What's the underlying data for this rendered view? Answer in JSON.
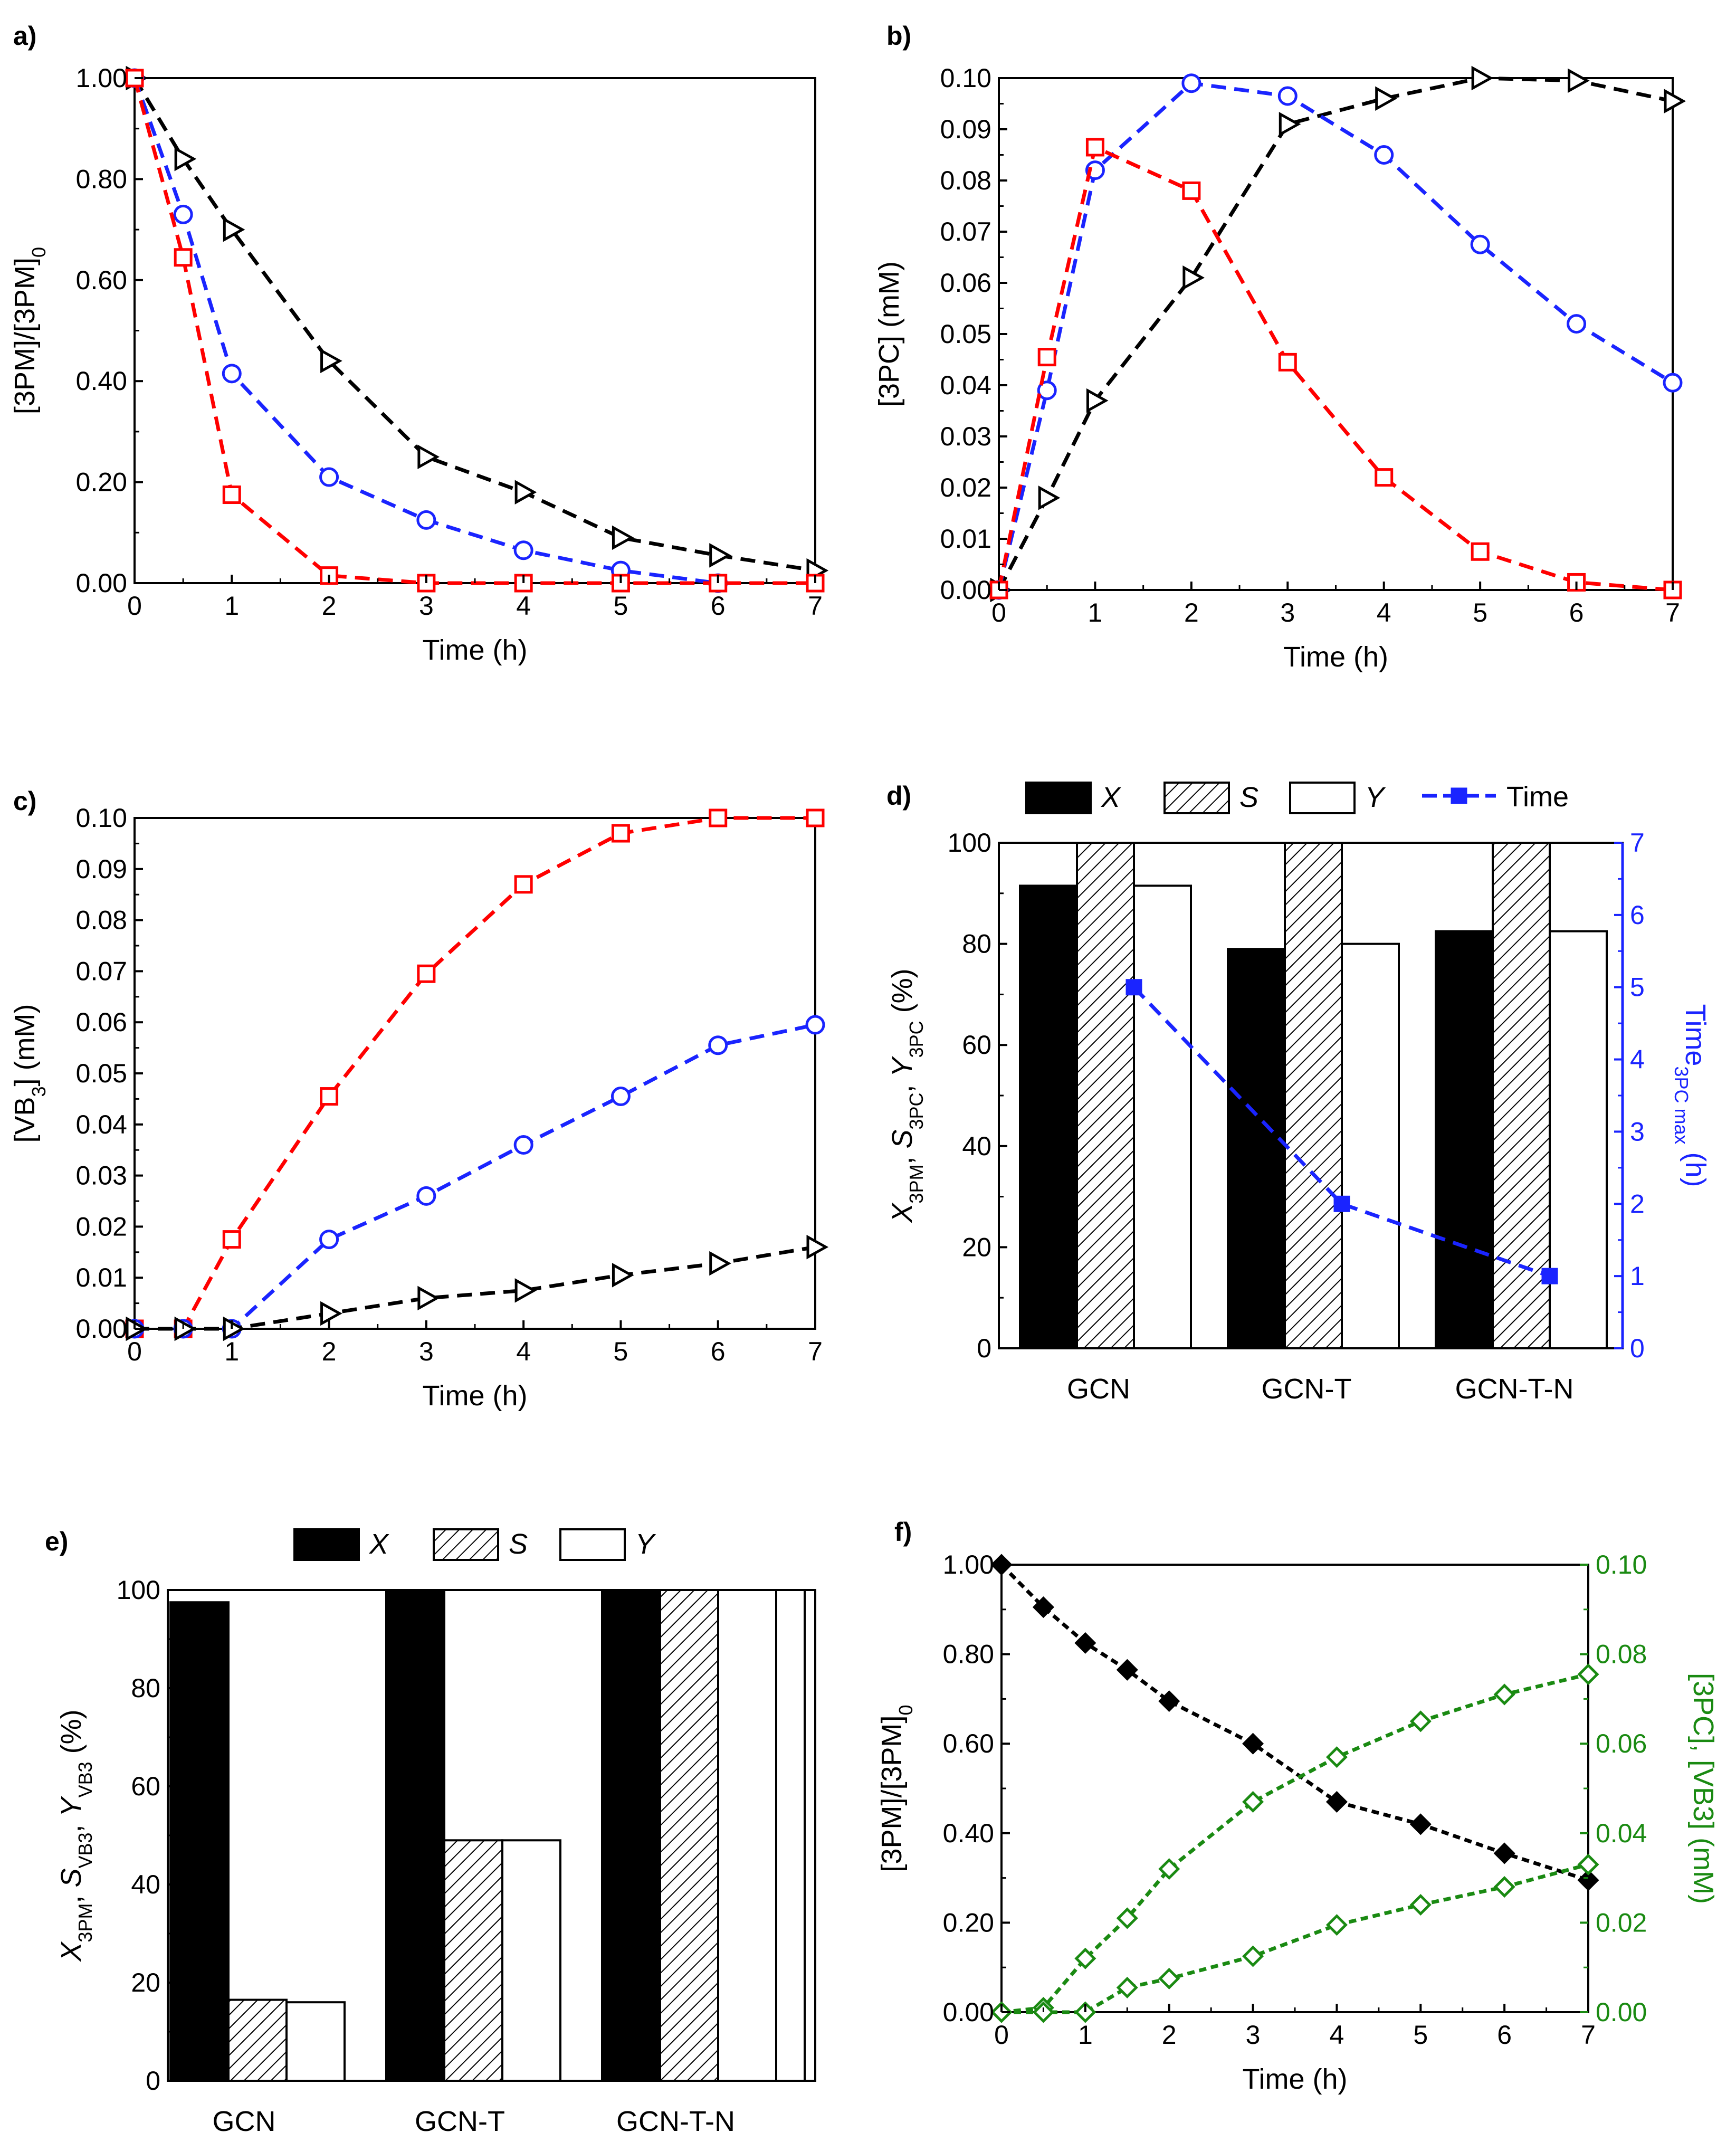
{
  "colors": {
    "red": "#ff0000",
    "blue": "#1a24ff",
    "black": "#000000",
    "green": "#1a8a12",
    "axis_blue": "#1a24ff",
    "axis_green": "#1a8a12"
  },
  "chart_data": [
    {
      "id": "a",
      "panel_label": "a)",
      "type": "line",
      "xlabel": "Time (h)",
      "ylabel": "[3PM]/[3PM]0",
      "xlim": [
        0,
        7
      ],
      "ylim": [
        0,
        1.0
      ],
      "x_ticks": [
        "0",
        "1",
        "2",
        "3",
        "4",
        "5",
        "6",
        "7"
      ],
      "y_ticks": [
        "0.00",
        "0.20",
        "0.40",
        "0.60",
        "0.80",
        "1.00"
      ],
      "series": [
        {
          "name": "triangle-black",
          "color": "black",
          "marker": "triangle",
          "x": [
            0,
            0.5,
            1,
            2,
            3,
            4,
            5,
            6,
            7
          ],
          "y": [
            1.0,
            0.84,
            0.7,
            0.44,
            0.25,
            0.18,
            0.09,
            0.055,
            0.025
          ]
        },
        {
          "name": "circle-blue",
          "color": "blue",
          "marker": "circle",
          "x": [
            0,
            0.5,
            1,
            2,
            3,
            4,
            5,
            6
          ],
          "y": [
            1.0,
            0.73,
            0.415,
            0.21,
            0.125,
            0.065,
            0.025,
            0.0
          ]
        },
        {
          "name": "square-red",
          "color": "red",
          "marker": "square",
          "x": [
            0,
            0.5,
            1,
            2,
            3,
            4,
            5,
            6,
            7
          ],
          "y": [
            1.0,
            0.645,
            0.175,
            0.015,
            0.0,
            0.0,
            0.0,
            0.0,
            0.0
          ]
        }
      ]
    },
    {
      "id": "b",
      "panel_label": "b)",
      "type": "line",
      "xlabel": "Time (h)",
      "ylabel": "[3PC] (mM)",
      "xlim": [
        0,
        7
      ],
      "ylim": [
        0,
        0.1
      ],
      "x_ticks": [
        "0",
        "1",
        "2",
        "3",
        "4",
        "5",
        "6",
        "7"
      ],
      "y_ticks": [
        "0.00",
        "0.01",
        "0.02",
        "0.03",
        "0.04",
        "0.05",
        "0.06",
        "0.07",
        "0.08",
        "0.09",
        "0.10"
      ],
      "series": [
        {
          "name": "triangle-black",
          "color": "black",
          "marker": "triangle",
          "x": [
            0,
            0.5,
            1,
            2,
            3,
            4,
            5,
            6,
            7
          ],
          "y": [
            0.0,
            0.018,
            0.037,
            0.061,
            0.091,
            0.096,
            0.1,
            0.0995,
            0.0955
          ]
        },
        {
          "name": "circle-blue",
          "color": "blue",
          "marker": "circle",
          "x": [
            0,
            0.5,
            1,
            2,
            3,
            4,
            5,
            6,
            7
          ],
          "y": [
            0.0,
            0.039,
            0.082,
            0.099,
            0.0965,
            0.085,
            0.0675,
            0.052,
            0.0405
          ]
        },
        {
          "name": "square-red",
          "color": "red",
          "marker": "square",
          "x": [
            0,
            0.5,
            1,
            2,
            3,
            4,
            5,
            6,
            7
          ],
          "y": [
            0.0,
            0.0455,
            0.0865,
            0.078,
            0.0445,
            0.022,
            0.0075,
            0.0015,
            0.0
          ]
        }
      ]
    },
    {
      "id": "c",
      "panel_label": "c)",
      "type": "line",
      "xlabel": "Time (h)",
      "ylabel": "[VB3] (mM)",
      "xlim": [
        0,
        7
      ],
      "ylim": [
        0,
        0.1
      ],
      "x_ticks": [
        "0",
        "1",
        "2",
        "3",
        "4",
        "5",
        "6",
        "7"
      ],
      "y_ticks": [
        "0.00",
        "0.01",
        "0.02",
        "0.03",
        "0.04",
        "0.05",
        "0.06",
        "0.07",
        "0.08",
        "0.09",
        "0.10"
      ],
      "series": [
        {
          "name": "square-red",
          "color": "red",
          "marker": "square",
          "x": [
            0,
            0.5,
            1,
            2,
            3,
            4,
            5,
            6,
            7
          ],
          "y": [
            0.0,
            0.0,
            0.0175,
            0.0455,
            0.0695,
            0.087,
            0.097,
            0.1,
            0.1
          ]
        },
        {
          "name": "circle-blue",
          "color": "blue",
          "marker": "circle",
          "x": [
            0,
            0.5,
            1,
            2,
            3,
            4,
            5,
            6,
            7
          ],
          "y": [
            0.0,
            0.0,
            0.0,
            0.0175,
            0.026,
            0.036,
            0.0455,
            0.0555,
            0.0595
          ]
        },
        {
          "name": "triangle-black",
          "color": "black",
          "marker": "triangle",
          "x": [
            0,
            0.5,
            1,
            2,
            3,
            4,
            5,
            6,
            7
          ],
          "y": [
            0.0,
            0.0,
            0.0,
            0.003,
            0.006,
            0.0075,
            0.0105,
            0.0128,
            0.016
          ]
        }
      ]
    },
    {
      "id": "d",
      "panel_label": "d)",
      "type": "bar",
      "categories": [
        "GCN",
        "GCN-T",
        "GCN-T-N"
      ],
      "ylabel": "X3PM, S3PC, Y3PC (%)",
      "ylim": [
        0,
        100
      ],
      "y_ticks": [
        "0",
        "20",
        "40",
        "60",
        "80",
        "100"
      ],
      "y2label": "Time3PC max (h)",
      "y2lim": [
        0,
        7
      ],
      "y2_ticks": [
        "0",
        "1",
        "2",
        "3",
        "4",
        "5",
        "6",
        "7"
      ],
      "legend": [
        {
          "label": "X",
          "pattern": "solid"
        },
        {
          "label": "S",
          "pattern": "hatch"
        },
        {
          "label": "Y",
          "pattern": "empty"
        },
        {
          "label": "Time",
          "pattern": "line-square"
        }
      ],
      "series": [
        {
          "name": "X",
          "values": [
            91.5,
            79,
            82.5
          ]
        },
        {
          "name": "S",
          "values": [
            100,
            100,
            100
          ]
        },
        {
          "name": "Y",
          "values": [
            91.5,
            80,
            82.5
          ]
        }
      ],
      "line_series": {
        "name": "Time",
        "color": "blue",
        "values": [
          5,
          2,
          1
        ]
      }
    },
    {
      "id": "e",
      "panel_label": "e)",
      "type": "bar",
      "categories": [
        "GCN",
        "GCN-T",
        "GCN-T-N"
      ],
      "ylabel": "X3PM, SVB3, YVB3 (%)",
      "ylim": [
        0,
        100
      ],
      "y_ticks": [
        "0",
        "20",
        "40",
        "60",
        "80",
        "100"
      ],
      "legend": [
        {
          "label": "X",
          "pattern": "solid"
        },
        {
          "label": "S",
          "pattern": "hatch"
        },
        {
          "label": "Y",
          "pattern": "empty"
        }
      ],
      "series": [
        {
          "name": "X",
          "values": [
            97.5,
            100,
            100
          ]
        },
        {
          "name": "S",
          "values": [
            16.5,
            49,
            100
          ]
        },
        {
          "name": "Y",
          "values": [
            16,
            49,
            100
          ]
        }
      ]
    },
    {
      "id": "f",
      "panel_label": "f)",
      "type": "line",
      "xlabel": "Time (h)",
      "ylabel": "[3PM]/[3PM]0",
      "y2label": "[3PC], [VB3] (mM)",
      "xlim": [
        0,
        7
      ],
      "ylim": [
        0,
        1.0
      ],
      "y2lim": [
        0,
        0.1
      ],
      "x_ticks": [
        "0",
        "1",
        "2",
        "3",
        "4",
        "5",
        "6",
        "7"
      ],
      "y_ticks": [
        "0.00",
        "0.20",
        "0.40",
        "0.60",
        "0.80",
        "1.00"
      ],
      "y2_ticks": [
        "0.00",
        "0.02",
        "0.04",
        "0.06",
        "0.08",
        "0.10"
      ],
      "series": [
        {
          "name": "3PM",
          "axis": "left",
          "color": "black",
          "marker": "diamond-filled",
          "x": [
            0,
            0.5,
            1,
            1.5,
            2,
            3,
            4,
            5,
            6,
            7
          ],
          "y": [
            1.0,
            0.905,
            0.825,
            0.765,
            0.695,
            0.6,
            0.47,
            0.42,
            0.355,
            0.295
          ]
        },
        {
          "name": "3PC",
          "axis": "right",
          "color": "green",
          "marker": "diamond-open",
          "x": [
            0,
            0.5,
            1,
            1.5,
            2,
            3,
            4,
            5,
            6,
            7
          ],
          "y": [
            0.0,
            0.001,
            0.012,
            0.021,
            0.032,
            0.047,
            0.057,
            0.065,
            0.071,
            0.0755
          ]
        },
        {
          "name": "VB3",
          "axis": "right",
          "color": "green",
          "marker": "diamond-open",
          "x": [
            0,
            0.5,
            1,
            1.5,
            2,
            3,
            4,
            5,
            6,
            7
          ],
          "y": [
            0.0,
            0.0,
            0.0,
            0.0055,
            0.0075,
            0.0125,
            0.0195,
            0.024,
            0.028,
            0.033
          ]
        }
      ]
    }
  ]
}
